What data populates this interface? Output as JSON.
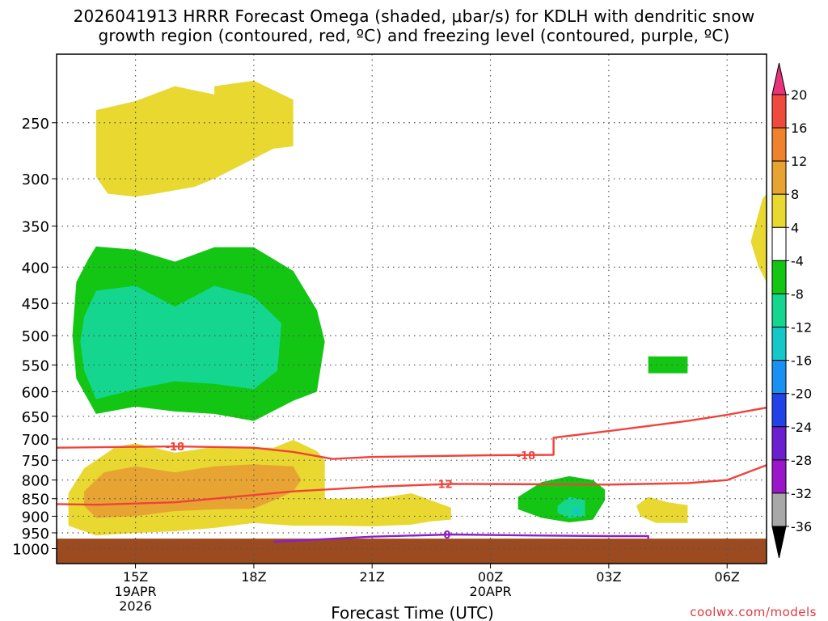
{
  "title_line1": "2026041913 HRRR Forecast Omega (shaded, μbar/s) for KDLH with dendritic snow",
  "title_line2": "growth region (contoured, red, ºC) and freezing level (contoured, purple, ºC)",
  "credit": "coolwx.com/models",
  "chart_data": {
    "type": "heatmap",
    "title": "2026041913 HRRR Forecast Omega (shaded, μbar/s) for KDLH with dendritic snow growth region (contoured, red, ºC) and freezing level (contoured, purple, ºC)",
    "xlabel": "Forecast Time (UTC)",
    "ylabel": "",
    "x_unit": "forecast hour from 2026041913",
    "xlim": [
      0,
      18
    ],
    "ylim": [
      1050,
      200
    ],
    "y_scale": "log",
    "grid": true,
    "y_ticks": [
      250,
      300,
      350,
      400,
      450,
      500,
      550,
      600,
      650,
      700,
      750,
      800,
      850,
      900,
      950,
      1000
    ],
    "x_ticks": [
      {
        "hour": 2,
        "label": "15Z",
        "date": "19APR",
        "year": "2026"
      },
      {
        "hour": 5,
        "label": "18Z"
      },
      {
        "hour": 8,
        "label": "21Z"
      },
      {
        "hour": 11,
        "label": "00Z",
        "date": "20APR"
      },
      {
        "hour": 14,
        "label": "03Z"
      },
      {
        "hour": 17,
        "label": "06Z"
      }
    ],
    "colorbar": {
      "levels": [
        20,
        16,
        12,
        8,
        4,
        -4,
        -8,
        -12,
        -16,
        -20,
        -24,
        -28,
        -32,
        -36
      ],
      "colors": [
        "#e8327a",
        "#f04a3e",
        "#ef832d",
        "#e8a432",
        "#e8d830",
        "#ffffff",
        "#13c613",
        "#14d68e",
        "#14c7c9",
        "#1891f2",
        "#2042e6",
        "#6c1fd0",
        "#9a16c8",
        "#a8a8a8",
        "#000000"
      ]
    },
    "shaded_regions": [
      {
        "color": "#e8d830",
        "points": [
          [
            1.0,
            298
          ],
          [
            1.0,
            240
          ],
          [
            2.0,
            233
          ],
          [
            3.0,
            222
          ],
          [
            4.0,
            228
          ],
          [
            4.0,
            222
          ],
          [
            5.0,
            218
          ],
          [
            6.0,
            232
          ],
          [
            6.0,
            270
          ],
          [
            5.5,
            272
          ],
          [
            5.0,
            281
          ],
          [
            4.0,
            300
          ],
          [
            3.5,
            308
          ],
          [
            2.5,
            315
          ],
          [
            2.0,
            318
          ],
          [
            1.3,
            315
          ]
        ]
      },
      {
        "color": "#e8d830",
        "points": [
          [
            17.6,
            368
          ],
          [
            17.9,
            320
          ],
          [
            18.0,
            315
          ],
          [
            18.0,
            420
          ],
          [
            17.8,
            400
          ]
        ]
      },
      {
        "color": "#13c613",
        "points": [
          [
            0.5,
            420
          ],
          [
            0.8,
            390
          ],
          [
            1.0,
            374
          ],
          [
            2.0,
            378
          ],
          [
            3.0,
            393
          ],
          [
            4.0,
            375
          ],
          [
            5.0,
            375
          ],
          [
            6.0,
            405
          ],
          [
            6.6,
            460
          ],
          [
            6.8,
            510
          ],
          [
            6.6,
            600
          ],
          [
            6.0,
            618
          ],
          [
            5.0,
            660
          ],
          [
            4.0,
            645
          ],
          [
            3.0,
            640
          ],
          [
            2.0,
            630
          ],
          [
            1.0,
            645
          ],
          [
            0.5,
            575
          ],
          [
            0.4,
            500
          ]
        ]
      },
      {
        "color": "#14d68e",
        "points": [
          [
            0.7,
            470
          ],
          [
            1.0,
            432
          ],
          [
            2.0,
            425
          ],
          [
            3.0,
            455
          ],
          [
            4.0,
            425
          ],
          [
            5.0,
            440
          ],
          [
            5.7,
            480
          ],
          [
            5.6,
            560
          ],
          [
            5.0,
            595
          ],
          [
            4.0,
            585
          ],
          [
            3.0,
            580
          ],
          [
            2.0,
            595
          ],
          [
            1.0,
            615
          ],
          [
            0.7,
            560
          ],
          [
            0.6,
            510
          ]
        ]
      },
      {
        "color": "#13c613",
        "points": [
          [
            15.0,
            535
          ],
          [
            16.0,
            535
          ],
          [
            16.0,
            565
          ],
          [
            15.0,
            565
          ]
        ]
      },
      {
        "color": "#e8d830",
        "points": [
          [
            0.3,
            835
          ],
          [
            0.7,
            770
          ],
          [
            1.5,
            718
          ],
          [
            2.0,
            710
          ],
          [
            3.0,
            732
          ],
          [
            4.0,
            718
          ],
          [
            5.5,
            720
          ],
          [
            6.0,
            702
          ],
          [
            6.6,
            728
          ],
          [
            6.8,
            750
          ],
          [
            6.8,
            850
          ],
          [
            8.1,
            850
          ],
          [
            9.0,
            835
          ],
          [
            10.0,
            875
          ],
          [
            10.0,
            910
          ],
          [
            9.5,
            915
          ],
          [
            9.0,
            925
          ],
          [
            8.0,
            930
          ],
          [
            7.0,
            928
          ],
          [
            6.0,
            928
          ],
          [
            5.0,
            920
          ],
          [
            4.0,
            935
          ],
          [
            3.0,
            945
          ],
          [
            2.0,
            950
          ],
          [
            1.0,
            958
          ],
          [
            0.3,
            928
          ]
        ]
      },
      {
        "color": "#e8a432",
        "points": [
          [
            0.7,
            830
          ],
          [
            1.2,
            780
          ],
          [
            2.0,
            765
          ],
          [
            3.0,
            780
          ],
          [
            4.0,
            765
          ],
          [
            5.0,
            760
          ],
          [
            6.0,
            765
          ],
          [
            6.2,
            800
          ],
          [
            6.0,
            830
          ],
          [
            5.5,
            855
          ],
          [
            5.0,
            878
          ],
          [
            4.0,
            880
          ],
          [
            3.0,
            885
          ],
          [
            2.0,
            900
          ],
          [
            1.0,
            905
          ],
          [
            0.7,
            870
          ]
        ]
      },
      {
        "color": "#13c613",
        "points": [
          [
            11.7,
            845
          ],
          [
            12.3,
            805
          ],
          [
            13.0,
            790
          ],
          [
            13.6,
            800
          ],
          [
            13.9,
            825
          ],
          [
            13.9,
            855
          ],
          [
            13.6,
            910
          ],
          [
            13.0,
            918
          ],
          [
            12.3,
            905
          ],
          [
            11.7,
            880
          ]
        ]
      },
      {
        "color": "#14d68e",
        "points": [
          [
            12.7,
            870
          ],
          [
            13.0,
            845
          ],
          [
            13.4,
            855
          ],
          [
            13.4,
            900
          ],
          [
            13.0,
            906
          ],
          [
            12.7,
            890
          ]
        ]
      },
      {
        "color": "#14c7c9",
        "points": [
          [
            13.1,
            880
          ],
          [
            13.25,
            873
          ],
          [
            13.25,
            893
          ],
          [
            13.1,
            895
          ]
        ]
      },
      {
        "color": "#e8d830",
        "points": [
          [
            14.7,
            870
          ],
          [
            15.0,
            845
          ],
          [
            15.5,
            860
          ],
          [
            16.0,
            868
          ],
          [
            16.0,
            920
          ],
          [
            15.2,
            920
          ],
          [
            14.8,
            900
          ]
        ]
      }
    ],
    "terrain": {
      "color": "#9c4a20",
      "top_hpa": 968
    },
    "contours": [
      {
        "value": -18,
        "label": "-18",
        "color": "#f0423a",
        "label_points": [
          [
            3.0,
            717
          ],
          [
            11.9,
            738
          ]
        ],
        "points": [
          [
            -2.0,
            722
          ],
          [
            3.0,
            717
          ],
          [
            5.0,
            720
          ],
          [
            6.0,
            730
          ],
          [
            7.0,
            747
          ],
          [
            8.0,
            742
          ],
          [
            11.0,
            738
          ],
          [
            12.6,
            737
          ],
          [
            12.6,
            697
          ],
          [
            14.0,
            682
          ],
          [
            16.0,
            660
          ],
          [
            17.0,
            647
          ],
          [
            18.0,
            632
          ]
        ]
      },
      {
        "value": -12,
        "label": "-12",
        "color": "#f0423a",
        "label_points": [
          [
            9.8,
            810
          ]
        ],
        "points": [
          [
            -2.0,
            862
          ],
          [
            1.0,
            867
          ],
          [
            3.0,
            860
          ],
          [
            5.0,
            840
          ],
          [
            6.0,
            830
          ],
          [
            8.0,
            818
          ],
          [
            10.0,
            810
          ],
          [
            14.0,
            812
          ],
          [
            16.0,
            808
          ],
          [
            17.0,
            800
          ],
          [
            18.0,
            762
          ]
        ]
      },
      {
        "value": 0,
        "label": "0",
        "color": "#8b1fc8",
        "label_points": [
          [
            9.9,
            955
          ]
        ],
        "points": [
          [
            5.5,
            978
          ],
          [
            8.0,
            962
          ],
          [
            10.0,
            955
          ],
          [
            12.0,
            958
          ],
          [
            14.0,
            960
          ],
          [
            15.0,
            960
          ],
          [
            15.0,
            968
          ]
        ]
      }
    ]
  }
}
